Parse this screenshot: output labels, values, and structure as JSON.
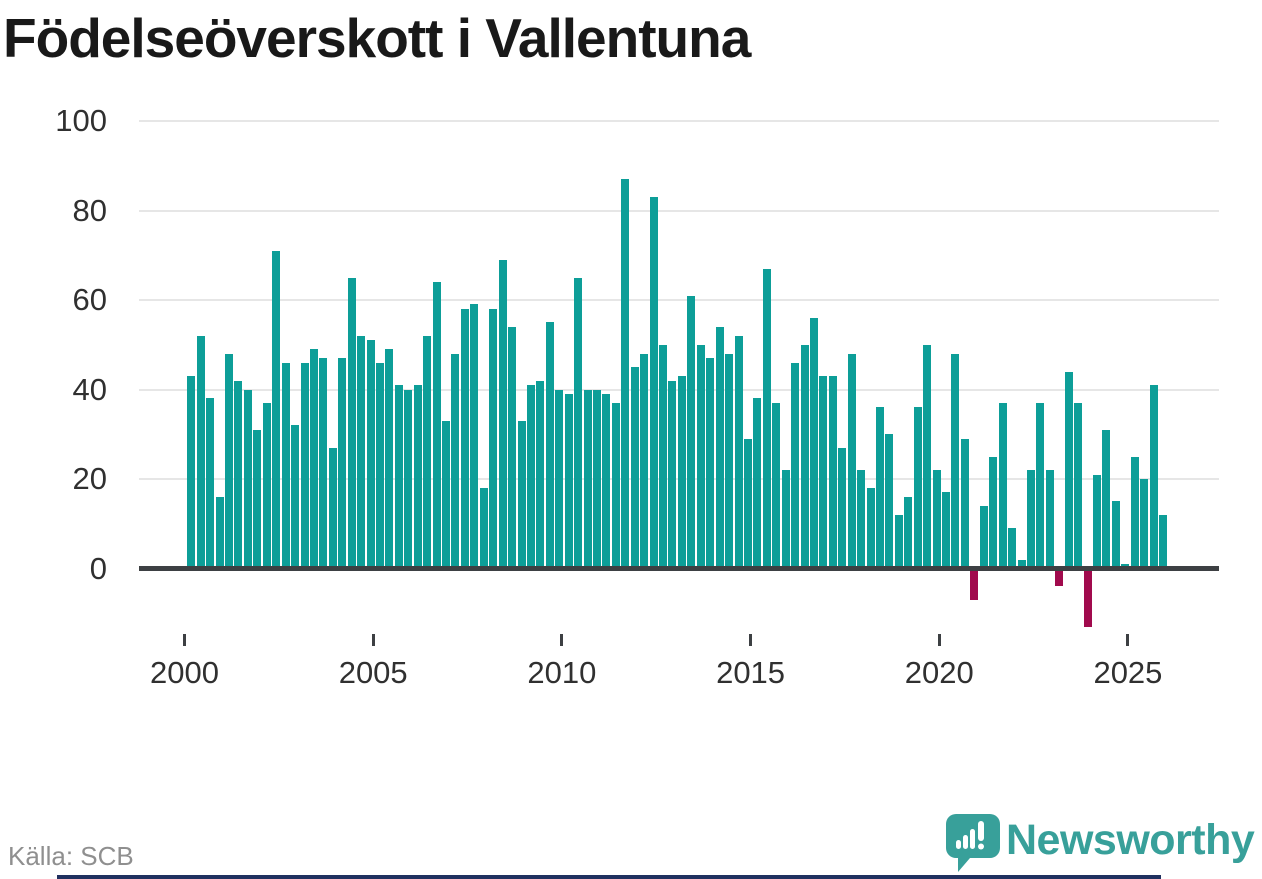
{
  "title": "Födelseöverskott i Vallentuna",
  "source": "Källa: SCB",
  "brand": {
    "name": "Newsworthy",
    "logo_icon": "speech-bubble-bar-chart-icon"
  },
  "colors": {
    "positive_bar": "#0d9e98",
    "negative_bar": "#a10a4d",
    "grid": "#e6e6e6",
    "axis": "#3d4043",
    "title_text": "#191919",
    "tick_text": "#303030",
    "source_text": "#8f8f8f",
    "brand_teal": "#38a09a",
    "bottom_stripe": "#20305f"
  },
  "chart_data": {
    "type": "bar",
    "title": "Födelseöverskott i Vallentuna",
    "xlabel": "",
    "ylabel": "",
    "frequency": "quarterly",
    "grid": true,
    "ylim": [
      -15,
      100
    ],
    "yticks": [
      0,
      20,
      40,
      60,
      80,
      100
    ],
    "xticks": [
      2000,
      2005,
      2010,
      2015,
      2020,
      2025
    ],
    "series_name": "Födelseöverskott",
    "points": [
      [
        "2000Q1",
        43
      ],
      [
        "2000Q2",
        52
      ],
      [
        "2000Q3",
        38
      ],
      [
        "2000Q4",
        16
      ],
      [
        "2001Q1",
        48
      ],
      [
        "2001Q2",
        42
      ],
      [
        "2001Q3",
        40
      ],
      [
        "2001Q4",
        31
      ],
      [
        "2002Q1",
        37
      ],
      [
        "2002Q2",
        71
      ],
      [
        "2002Q3",
        46
      ],
      [
        "2002Q4",
        32
      ],
      [
        "2003Q1",
        46
      ],
      [
        "2003Q2",
        49
      ],
      [
        "2003Q3",
        47
      ],
      [
        "2003Q4",
        27
      ],
      [
        "2004Q1",
        47
      ],
      [
        "2004Q2",
        65
      ],
      [
        "2004Q3",
        52
      ],
      [
        "2004Q4",
        51
      ],
      [
        "2005Q1",
        46
      ],
      [
        "2005Q2",
        49
      ],
      [
        "2005Q3",
        41
      ],
      [
        "2005Q4",
        40
      ],
      [
        "2006Q1",
        41
      ],
      [
        "2006Q2",
        52
      ],
      [
        "2006Q3",
        64
      ],
      [
        "2006Q4",
        33
      ],
      [
        "2007Q1",
        48
      ],
      [
        "2007Q2",
        58
      ],
      [
        "2007Q3",
        59
      ],
      [
        "2007Q4",
        18
      ],
      [
        "2008Q1",
        58
      ],
      [
        "2008Q2",
        69
      ],
      [
        "2008Q3",
        54
      ],
      [
        "2008Q4",
        33
      ],
      [
        "2009Q1",
        41
      ],
      [
        "2009Q2",
        42
      ],
      [
        "2009Q3",
        55
      ],
      [
        "2009Q4",
        40
      ],
      [
        "2010Q1",
        39
      ],
      [
        "2010Q2",
        65
      ],
      [
        "2010Q3",
        40
      ],
      [
        "2010Q4",
        40
      ],
      [
        "2011Q1",
        39
      ],
      [
        "2011Q2",
        37
      ],
      [
        "2011Q3",
        87
      ],
      [
        "2011Q4",
        45
      ],
      [
        "2012Q1",
        48
      ],
      [
        "2012Q2",
        83
      ],
      [
        "2012Q3",
        50
      ],
      [
        "2012Q4",
        42
      ],
      [
        "2013Q1",
        43
      ],
      [
        "2013Q2",
        61
      ],
      [
        "2013Q3",
        50
      ],
      [
        "2013Q4",
        47
      ],
      [
        "2014Q1",
        54
      ],
      [
        "2014Q2",
        48
      ],
      [
        "2014Q3",
        52
      ],
      [
        "2014Q4",
        29
      ],
      [
        "2015Q1",
        38
      ],
      [
        "2015Q2",
        67
      ],
      [
        "2015Q3",
        37
      ],
      [
        "2015Q4",
        22
      ],
      [
        "2016Q1",
        46
      ],
      [
        "2016Q2",
        50
      ],
      [
        "2016Q3",
        56
      ],
      [
        "2016Q4",
        43
      ],
      [
        "2017Q1",
        43
      ],
      [
        "2017Q2",
        27
      ],
      [
        "2017Q3",
        48
      ],
      [
        "2017Q4",
        22
      ],
      [
        "2018Q1",
        18
      ],
      [
        "2018Q2",
        36
      ],
      [
        "2018Q3",
        30
      ],
      [
        "2018Q4",
        12
      ],
      [
        "2019Q1",
        16
      ],
      [
        "2019Q2",
        36
      ],
      [
        "2019Q3",
        50
      ],
      [
        "2019Q4",
        22
      ],
      [
        "2020Q1",
        17
      ],
      [
        "2020Q2",
        48
      ],
      [
        "2020Q3",
        29
      ],
      [
        "2020Q4",
        -7
      ],
      [
        "2021Q1",
        14
      ],
      [
        "2021Q2",
        25
      ],
      [
        "2021Q3",
        37
      ],
      [
        "2021Q4",
        9
      ],
      [
        "2022Q1",
        2
      ],
      [
        "2022Q2",
        22
      ],
      [
        "2022Q3",
        37
      ],
      [
        "2022Q4",
        22
      ],
      [
        "2023Q1",
        -4
      ],
      [
        "2023Q2",
        44
      ],
      [
        "2023Q3",
        37
      ],
      [
        "2023Q4",
        -13
      ],
      [
        "2024Q1",
        21
      ],
      [
        "2024Q2",
        31
      ],
      [
        "2024Q3",
        15
      ],
      [
        "2024Q4",
        1
      ],
      [
        "2025Q1",
        25
      ],
      [
        "2025Q2",
        20
      ],
      [
        "2025Q3",
        41
      ],
      [
        "2025Q4",
        12
      ]
    ]
  }
}
